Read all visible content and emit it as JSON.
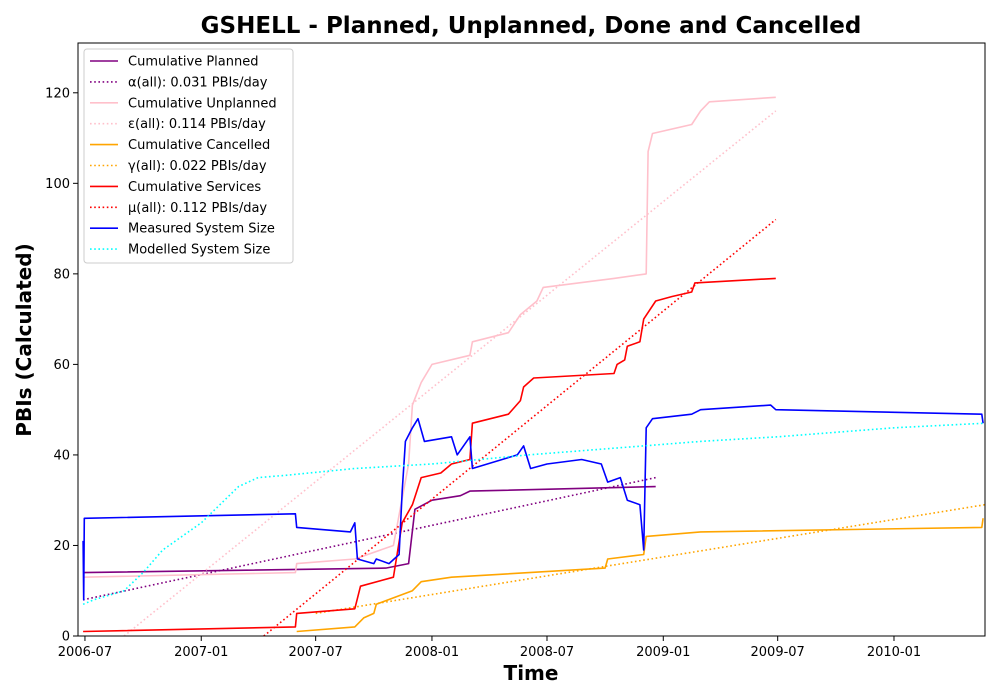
{
  "chart_data": {
    "type": "line",
    "title": "GSHELL - Planned, Unplanned, Done  and Cancelled",
    "xlabel": "Time",
    "ylabel": "PBIs (Calculated)",
    "xlim": [
      "2006-06-20",
      "2010-05-25"
    ],
    "ylim": [
      0,
      131
    ],
    "x_ticks": [
      "2006-07",
      "2007-01",
      "2007-07",
      "2008-01",
      "2008-07",
      "2009-01",
      "2009-07",
      "2010-01"
    ],
    "y_ticks": [
      0,
      20,
      40,
      60,
      80,
      100,
      120
    ],
    "grid": false,
    "legend_position": "upper-left",
    "series": [
      {
        "name": "Cumulative Planned",
        "style": "solid",
        "color": "#800080",
        "points": [
          [
            "2006-06-28",
            14
          ],
          [
            "2007-10-20",
            15
          ],
          [
            "2007-11-25",
            16
          ],
          [
            "2007-12-05",
            28
          ],
          [
            "2008-01-01",
            30
          ],
          [
            "2008-02-15",
            31
          ],
          [
            "2008-03-01",
            32
          ],
          [
            "2008-12-20",
            33
          ]
        ]
      },
      {
        "name": "α(all): 0.031 PBIs/day",
        "style": "dotted",
        "color": "#800080",
        "points": [
          [
            "2006-06-28",
            8
          ],
          [
            "2008-12-20",
            35
          ]
        ]
      },
      {
        "name": "Cumulative Unplanned",
        "style": "solid",
        "color": "#ffc0cb",
        "points": [
          [
            "2006-06-28",
            13
          ],
          [
            "2007-05-30",
            14
          ],
          [
            "2007-06-01",
            16
          ],
          [
            "2007-09-01",
            17
          ],
          [
            "2007-11-01",
            20
          ],
          [
            "2007-11-25",
            38
          ],
          [
            "2007-12-01",
            51
          ],
          [
            "2007-12-15",
            56
          ],
          [
            "2008-01-01",
            60
          ],
          [
            "2008-03-01",
            62
          ],
          [
            "2008-03-05",
            65
          ],
          [
            "2008-05-01",
            67
          ],
          [
            "2008-05-20",
            71
          ],
          [
            "2008-06-15",
            74
          ],
          [
            "2008-06-25",
            77
          ],
          [
            "2008-10-15",
            79
          ],
          [
            "2008-12-05",
            80
          ],
          [
            "2008-12-08",
            107
          ],
          [
            "2008-12-15",
            111
          ],
          [
            "2009-02-15",
            113
          ],
          [
            "2009-03-01",
            116
          ],
          [
            "2009-03-15",
            118
          ],
          [
            "2009-06-28",
            119
          ]
        ]
      },
      {
        "name": "ε(all): 0.114 PBIs/day",
        "style": "dotted",
        "color": "#ffc0cb",
        "points": [
          [
            "2006-09-01",
            0
          ],
          [
            "2009-06-28",
            116
          ]
        ]
      },
      {
        "name": "Cumulative Cancelled",
        "style": "solid",
        "color": "#ffa500",
        "points": [
          [
            "2007-06-01",
            1
          ],
          [
            "2007-09-01",
            2
          ],
          [
            "2007-09-15",
            4
          ],
          [
            "2007-10-01",
            5
          ],
          [
            "2007-10-05",
            7
          ],
          [
            "2007-12-01",
            10
          ],
          [
            "2007-12-15",
            12
          ],
          [
            "2008-02-01",
            13
          ],
          [
            "2008-10-01",
            15
          ],
          [
            "2008-10-05",
            17
          ],
          [
            "2008-12-01",
            18
          ],
          [
            "2008-12-05",
            22
          ],
          [
            "2009-03-01",
            23
          ],
          [
            "2010-05-20",
            24
          ],
          [
            "2010-05-22",
            26
          ]
        ]
      },
      {
        "name": "γ(all): 0.022 PBIs/day",
        "style": "dotted",
        "color": "#ffa500",
        "points": [
          [
            "2007-07-01",
            5
          ],
          [
            "2010-05-25",
            29
          ]
        ]
      },
      {
        "name": "Cumulative Services",
        "style": "solid",
        "color": "#ff0000",
        "points": [
          [
            "2006-06-28",
            1
          ],
          [
            "2007-05-30",
            2
          ],
          [
            "2007-06-01",
            5
          ],
          [
            "2007-09-01",
            6
          ],
          [
            "2007-09-10",
            11
          ],
          [
            "2007-11-01",
            13
          ],
          [
            "2007-11-15",
            25
          ],
          [
            "2007-12-01",
            29
          ],
          [
            "2007-12-15",
            35
          ],
          [
            "2008-01-15",
            36
          ],
          [
            "2008-02-01",
            38
          ],
          [
            "2008-03-01",
            39
          ],
          [
            "2008-03-05",
            47
          ],
          [
            "2008-05-01",
            49
          ],
          [
            "2008-05-20",
            52
          ],
          [
            "2008-05-25",
            55
          ],
          [
            "2008-06-10",
            57
          ],
          [
            "2008-10-15",
            58
          ],
          [
            "2008-10-20",
            60
          ],
          [
            "2008-11-01",
            61
          ],
          [
            "2008-11-05",
            64
          ],
          [
            "2008-11-25",
            65
          ],
          [
            "2008-12-01",
            70
          ],
          [
            "2008-12-20",
            74
          ],
          [
            "2009-01-15",
            75
          ],
          [
            "2009-02-15",
            76
          ],
          [
            "2009-02-20",
            78
          ],
          [
            "2009-06-28",
            79
          ]
        ]
      },
      {
        "name": "μ(all): 0.112 PBIs/day",
        "style": "dotted",
        "color": "#ff0000",
        "points": [
          [
            "2007-04-10",
            0
          ],
          [
            "2009-06-28",
            92
          ]
        ]
      },
      {
        "name": "Measured System Size",
        "style": "solid",
        "color": "#0000ff",
        "points": [
          [
            "2006-06-28",
            21
          ],
          [
            "2006-06-29",
            8
          ],
          [
            "2006-06-30",
            26
          ],
          [
            "2007-05-30",
            27
          ],
          [
            "2007-06-01",
            24
          ],
          [
            "2007-08-25",
            23
          ],
          [
            "2007-09-01",
            25
          ],
          [
            "2007-09-05",
            17
          ],
          [
            "2007-10-01",
            16
          ],
          [
            "2007-10-05",
            17
          ],
          [
            "2007-10-25",
            16
          ],
          [
            "2007-11-10",
            18
          ],
          [
            "2007-11-15",
            32
          ],
          [
            "2007-11-20",
            43
          ],
          [
            "2007-12-01",
            46
          ],
          [
            "2007-12-10",
            48
          ],
          [
            "2007-12-20",
            43
          ],
          [
            "2008-02-01",
            44
          ],
          [
            "2008-02-10",
            40
          ],
          [
            "2008-03-01",
            44
          ],
          [
            "2008-03-05",
            37
          ],
          [
            "2008-05-15",
            40
          ],
          [
            "2008-05-25",
            42
          ],
          [
            "2008-06-05",
            37
          ],
          [
            "2008-07-01",
            38
          ],
          [
            "2008-08-25",
            39
          ],
          [
            "2008-09-25",
            38
          ],
          [
            "2008-10-05",
            34
          ],
          [
            "2008-10-25",
            35
          ],
          [
            "2008-11-05",
            30
          ],
          [
            "2008-11-25",
            29
          ],
          [
            "2008-12-01",
            19
          ],
          [
            "2008-12-05",
            46
          ],
          [
            "2008-12-15",
            48
          ],
          [
            "2009-02-15",
            49
          ],
          [
            "2009-03-01",
            50
          ],
          [
            "2009-06-20",
            51
          ],
          [
            "2009-06-28",
            50
          ],
          [
            "2010-05-20",
            49
          ],
          [
            "2010-05-22",
            47
          ]
        ]
      },
      {
        "name": "Modelled System Size",
        "style": "dotted",
        "color": "#00ffff",
        "points": [
          [
            "2006-06-28",
            7
          ],
          [
            "2006-07-15",
            8
          ],
          [
            "2006-09-01",
            10
          ],
          [
            "2006-10-01",
            14
          ],
          [
            "2006-11-01",
            19
          ],
          [
            "2007-01-01",
            25
          ],
          [
            "2007-03-01",
            33
          ],
          [
            "2007-04-01",
            35
          ],
          [
            "2007-05-15",
            35.5
          ],
          [
            "2007-09-01",
            37
          ],
          [
            "2008-01-01",
            38
          ],
          [
            "2008-06-01",
            40
          ],
          [
            "2008-12-01",
            42
          ],
          [
            "2009-03-01",
            43
          ],
          [
            "2009-07-01",
            44
          ],
          [
            "2009-10-01",
            45
          ],
          [
            "2010-01-01",
            46
          ],
          [
            "2010-05-25",
            47
          ]
        ]
      }
    ]
  }
}
